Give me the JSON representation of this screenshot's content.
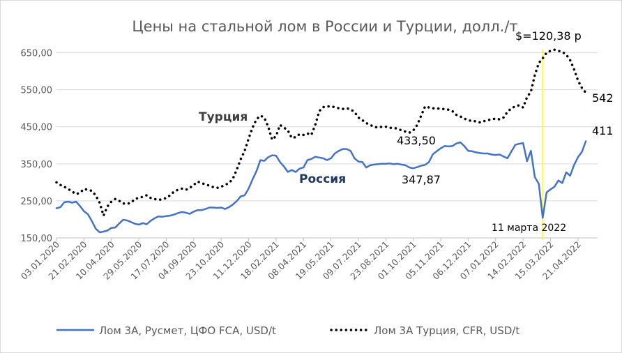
{
  "chart_data": {
    "type": "line",
    "title": "Цены на стальной лом в России и Турции, долл./т",
    "ylim": [
      150,
      700
    ],
    "yticks": [
      "150,00",
      "250,00",
      "350,00",
      "450,00",
      "550,00",
      "650,00"
    ],
    "ytick_values": [
      150,
      250,
      350,
      450,
      550,
      650
    ],
    "grid": true,
    "legend": "bottom",
    "x_ticks": [
      "03.01.2020",
      "21.02.2020",
      "10.04.2020",
      "29.05.2020",
      "17.07.2020",
      "04.09.2020",
      "23.10.2020",
      "11.12.2020",
      "18.02.2021",
      "08.04.2021",
      "19.05.2021",
      "09.07.2021",
      "23.08.2021",
      "01.10.2021",
      "05.11.2021",
      "06.12.2021",
      "07.01.2022",
      "14.02.2022",
      "15.03.2022",
      "21.04.2022"
    ],
    "x_tick_pos": [
      0,
      7,
      14,
      21,
      28,
      35,
      42,
      49,
      56,
      63,
      70,
      77,
      84,
      91,
      98,
      105,
      112,
      119,
      126,
      133
    ],
    "x_end": 138,
    "series": [
      {
        "name": "Лом 3А, Русмет, ЦФО FCA, USD/t",
        "color": "#4472c4",
        "style": "solid",
        "points": [
          [
            0,
            230
          ],
          [
            1,
            233
          ],
          [
            2,
            246
          ],
          [
            3,
            248
          ],
          [
            4,
            245
          ],
          [
            5,
            248
          ],
          [
            6,
            236
          ],
          [
            7,
            222
          ],
          [
            8,
            214
          ],
          [
            9,
            196
          ],
          [
            10,
            175
          ],
          [
            11,
            165
          ],
          [
            12,
            167
          ],
          [
            13,
            170
          ],
          [
            14,
            177
          ],
          [
            15,
            178
          ],
          [
            16,
            189
          ],
          [
            17,
            199
          ],
          [
            18,
            197
          ],
          [
            19,
            193
          ],
          [
            20,
            188
          ],
          [
            21,
            186
          ],
          [
            22,
            190
          ],
          [
            23,
            187
          ],
          [
            24,
            196
          ],
          [
            25,
            203
          ],
          [
            26,
            208
          ],
          [
            27,
            207
          ],
          [
            28,
            209
          ],
          [
            29,
            210
          ],
          [
            30,
            213
          ],
          [
            31,
            217
          ],
          [
            32,
            220
          ],
          [
            33,
            218
          ],
          [
            34,
            215
          ],
          [
            35,
            221
          ],
          [
            36,
            225
          ],
          [
            37,
            225
          ],
          [
            38,
            228
          ],
          [
            39,
            232
          ],
          [
            40,
            232
          ],
          [
            41,
            231
          ],
          [
            42,
            232
          ],
          [
            43,
            228
          ],
          [
            44,
            233
          ],
          [
            45,
            240
          ],
          [
            46,
            250
          ],
          [
            47,
            262
          ],
          [
            48,
            265
          ],
          [
            49,
            283
          ],
          [
            50,
            308
          ],
          [
            51,
            330
          ],
          [
            52,
            360
          ],
          [
            53,
            358
          ],
          [
            54,
            368
          ],
          [
            55,
            373
          ],
          [
            56,
            372
          ],
          [
            57,
            355
          ],
          [
            58,
            343
          ],
          [
            59,
            328
          ],
          [
            60,
            333
          ],
          [
            61,
            328
          ],
          [
            62,
            337
          ],
          [
            63,
            340
          ],
          [
            64,
            360
          ],
          [
            65,
            363
          ],
          [
            66,
            369
          ],
          [
            67,
            367
          ],
          [
            68,
            365
          ],
          [
            69,
            360
          ],
          [
            70,
            365
          ],
          [
            71,
            378
          ],
          [
            72,
            385
          ],
          [
            73,
            390
          ],
          [
            74,
            390
          ],
          [
            75,
            385
          ],
          [
            76,
            365
          ],
          [
            77,
            356
          ],
          [
            78,
            355
          ],
          [
            79,
            340
          ],
          [
            80,
            346
          ],
          [
            81,
            348
          ],
          [
            82,
            349
          ],
          [
            83,
            350
          ],
          [
            84,
            350
          ],
          [
            85,
            351
          ],
          [
            86,
            349
          ],
          [
            87,
            350
          ],
          [
            88,
            348
          ],
          [
            89,
            346
          ],
          [
            90,
            340
          ],
          [
            91,
            338
          ],
          [
            92,
            341
          ],
          [
            93,
            345
          ],
          [
            94,
            347
          ],
          [
            95,
            355
          ],
          [
            96,
            376
          ],
          [
            97,
            384
          ],
          [
            98,
            392
          ],
          [
            99,
            398
          ],
          [
            100,
            397
          ],
          [
            101,
            398
          ],
          [
            102,
            405
          ],
          [
            103,
            408
          ],
          [
            104,
            398
          ],
          [
            105,
            385
          ],
          [
            106,
            384
          ],
          [
            107,
            381
          ],
          [
            108,
            379
          ],
          [
            109,
            378
          ],
          [
            110,
            378
          ],
          [
            111,
            375
          ],
          [
            112,
            374
          ],
          [
            113,
            375
          ],
          [
            114,
            370
          ],
          [
            115,
            365
          ],
          [
            116,
            383
          ],
          [
            117,
            401
          ],
          [
            118,
            404
          ],
          [
            119,
            406
          ],
          [
            120,
            357
          ],
          [
            121,
            385
          ],
          [
            122,
            314
          ],
          [
            123,
            296
          ],
          [
            124,
            204
          ],
          [
            125,
            273
          ],
          [
            126,
            281
          ],
          [
            127,
            288
          ],
          [
            128,
            305
          ],
          [
            129,
            298
          ],
          [
            130,
            327
          ],
          [
            131,
            318
          ],
          [
            132,
            347
          ],
          [
            133,
            368
          ],
          [
            134,
            382
          ],
          [
            135,
            411
          ]
        ]
      },
      {
        "name": "Лом 3А Турция, CFR, USD/t",
        "color": "#000000",
        "style": "dotted",
        "points": [
          [
            0,
            300
          ],
          [
            1,
            293
          ],
          [
            2,
            288
          ],
          [
            3,
            282
          ],
          [
            4,
            275
          ],
          [
            5,
            268
          ],
          [
            6,
            272
          ],
          [
            7,
            282
          ],
          [
            8,
            280
          ],
          [
            9,
            277
          ],
          [
            10,
            265
          ],
          [
            11,
            245
          ],
          [
            12,
            210
          ],
          [
            13,
            235
          ],
          [
            14,
            248
          ],
          [
            15,
            255
          ],
          [
            16,
            250
          ],
          [
            17,
            243
          ],
          [
            18,
            242
          ],
          [
            19,
            245
          ],
          [
            20,
            255
          ],
          [
            21,
            258
          ],
          [
            22,
            261
          ],
          [
            23,
            265
          ],
          [
            24,
            258
          ],
          [
            25,
            255
          ],
          [
            26,
            253
          ],
          [
            27,
            254
          ],
          [
            28,
            258
          ],
          [
            29,
            265
          ],
          [
            30,
            275
          ],
          [
            31,
            280
          ],
          [
            32,
            283
          ],
          [
            33,
            280
          ],
          [
            34,
            285
          ],
          [
            35,
            293
          ],
          [
            36,
            302
          ],
          [
            37,
            298
          ],
          [
            38,
            294
          ],
          [
            39,
            291
          ],
          [
            40,
            287
          ],
          [
            41,
            285
          ],
          [
            42,
            288
          ],
          [
            43,
            293
          ],
          [
            44,
            298
          ],
          [
            45,
            310
          ],
          [
            46,
            335
          ],
          [
            47,
            363
          ],
          [
            48,
            385
          ],
          [
            49,
            418
          ],
          [
            50,
            448
          ],
          [
            51,
            470
          ],
          [
            52,
            480
          ],
          [
            53,
            475
          ],
          [
            54,
            450
          ],
          [
            55,
            415
          ],
          [
            56,
            425
          ],
          [
            57,
            455
          ],
          [
            58,
            448
          ],
          [
            59,
            440
          ],
          [
            60,
            420
          ],
          [
            61,
            422
          ],
          [
            62,
            430
          ],
          [
            63,
            428
          ],
          [
            64,
            432
          ],
          [
            65,
            428
          ],
          [
            66,
            455
          ],
          [
            67,
            492
          ],
          [
            68,
            503
          ],
          [
            69,
            505
          ],
          [
            70,
            505
          ],
          [
            71,
            503
          ],
          [
            72,
            500
          ],
          [
            73,
            498
          ],
          [
            74,
            500
          ],
          [
            75,
            497
          ],
          [
            76,
            490
          ],
          [
            77,
            475
          ],
          [
            78,
            468
          ],
          [
            79,
            460
          ],
          [
            80,
            455
          ],
          [
            81,
            450
          ],
          [
            82,
            448
          ],
          [
            83,
            450
          ],
          [
            84,
            450
          ],
          [
            85,
            447
          ],
          [
            86,
            447
          ],
          [
            87,
            445
          ],
          [
            88,
            440
          ],
          [
            89,
            437
          ],
          [
            90,
            434
          ],
          [
            91,
            440
          ],
          [
            92,
            455
          ],
          [
            93,
            480
          ],
          [
            94,
            505
          ],
          [
            95,
            502
          ],
          [
            96,
            500
          ],
          [
            97,
            500
          ],
          [
            98,
            498
          ],
          [
            99,
            498
          ],
          [
            100,
            496
          ],
          [
            101,
            492
          ],
          [
            102,
            482
          ],
          [
            103,
            478
          ],
          [
            104,
            472
          ],
          [
            105,
            468
          ],
          [
            106,
            465
          ],
          [
            107,
            465
          ],
          [
            108,
            462
          ],
          [
            109,
            465
          ],
          [
            110,
            468
          ],
          [
            111,
            470
          ],
          [
            112,
            472
          ],
          [
            113,
            470
          ],
          [
            114,
            475
          ],
          [
            115,
            490
          ],
          [
            116,
            500
          ],
          [
            117,
            505
          ],
          [
            118,
            508
          ],
          [
            119,
            502
          ],
          [
            120,
            530
          ],
          [
            121,
            545
          ],
          [
            122,
            590
          ],
          [
            123,
            622
          ],
          [
            124,
            635
          ],
          [
            125,
            650
          ],
          [
            126,
            655
          ],
          [
            127,
            658
          ],
          [
            128,
            655
          ],
          [
            129,
            652
          ],
          [
            130,
            645
          ],
          [
            131,
            630
          ],
          [
            132,
            605
          ],
          [
            133,
            575
          ],
          [
            134,
            555
          ],
          [
            135,
            542
          ]
        ]
      }
    ],
    "series_labels": [
      {
        "text": "Турция",
        "series": 1
      },
      {
        "text": "Россия",
        "series": 0
      }
    ],
    "annotations": [
      {
        "text": "433,50",
        "x": 89,
        "y": 433.5
      },
      {
        "text": "347,87",
        "x": 94,
        "y": 347.87
      },
      {
        "text": "$=120,38 р",
        "x": 124,
        "y": 680
      },
      {
        "text": "542",
        "x": 135,
        "y": 542
      },
      {
        "text": "411",
        "x": 135,
        "y": 411
      },
      {
        "text": "11 марта 2022",
        "x": 124,
        "y": 165
      }
    ],
    "vline": {
      "x": 124,
      "color": "#ffff00"
    }
  }
}
